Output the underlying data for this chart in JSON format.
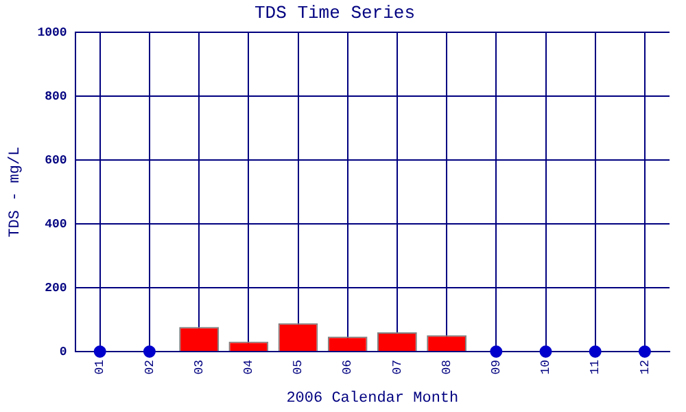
{
  "chart_data": {
    "type": "bar",
    "title": "TDS Time Series",
    "xlabel": "2006 Calendar Month",
    "ylabel": "TDS - mg/L",
    "categories": [
      "01",
      "02",
      "03",
      "04",
      "05",
      "06",
      "07",
      "08",
      "09",
      "10",
      "11",
      "12"
    ],
    "series": [
      {
        "color": "#ff0000",
        "values": [
          null,
          null,
          77,
          31,
          89,
          47,
          60,
          51,
          null,
          null,
          null,
          null
        ]
      },
      {
        "type": "scatter",
        "color": "#0000cc",
        "marker": "circle",
        "values": [
          0,
          0,
          null,
          null,
          null,
          null,
          null,
          null,
          0,
          0,
          0,
          0
        ]
      }
    ],
    "ylim": [
      0,
      1000
    ],
    "yticks": [
      0,
      200,
      400,
      600,
      800,
      1000
    ],
    "grid": true,
    "legend": false
  }
}
